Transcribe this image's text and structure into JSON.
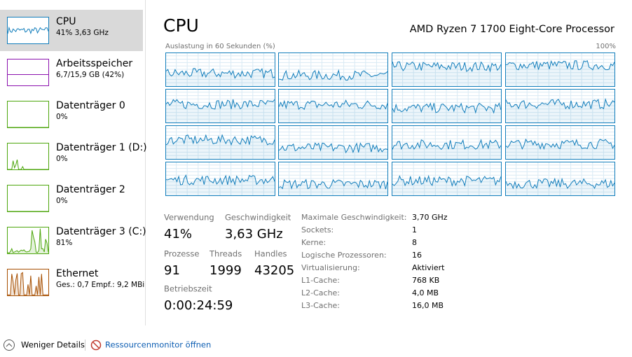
{
  "sidebar": {
    "items": [
      {
        "title": "CPU",
        "subtitle": "41% 3,63 GHz",
        "color": "#117dbb"
      },
      {
        "title": "Arbeitsspeicher",
        "subtitle": "6,7/15,9 GB (42%)",
        "color": "#8b12ae"
      },
      {
        "title": "Datenträger 0",
        "subtitle": "0%",
        "color": "#4da60c"
      },
      {
        "title": "Datenträger 1 (D:)",
        "subtitle": "0%",
        "color": "#4da60c"
      },
      {
        "title": "Datenträger 2",
        "subtitle": "0%",
        "color": "#4da60c"
      },
      {
        "title": "Datenträger 3 (C:)",
        "subtitle": "81%",
        "color": "#4da60c"
      },
      {
        "title": "Ethernet",
        "subtitle": "Ges.: 0,7 Empf.: 9,2 MBi",
        "color": "#a74f01"
      }
    ]
  },
  "header": {
    "title": "CPU",
    "processor": "AMD Ryzen 7 1700 Eight-Core Processor"
  },
  "graph": {
    "label": "Auslastung in 60 Sekunden (%)",
    "max_label": "100%"
  },
  "stats": [
    {
      "label": "Verwendung",
      "value": "41%"
    },
    {
      "label": "Geschwindigkeit",
      "value": "3,63 GHz"
    },
    {
      "label": "Prozesse",
      "value": "91"
    },
    {
      "label": "Threads",
      "value": "1999"
    },
    {
      "label": "Handles",
      "value": "43205"
    },
    {
      "label": "Betriebszeit",
      "value": "0:00:24:59"
    }
  ],
  "details": [
    {
      "label": "Maximale Geschwindigkeit:",
      "value": "3,70 GHz"
    },
    {
      "label": "Sockets:",
      "value": "1"
    },
    {
      "label": "Kerne:",
      "value": "8"
    },
    {
      "label": "Logische Prozessoren:",
      "value": "16"
    },
    {
      "label": "Virtualisierung:",
      "value": "Aktiviert"
    },
    {
      "label": "L1-Cache:",
      "value": "768 KB"
    },
    {
      "label": "L2-Cache:",
      "value": "4,0 MB"
    },
    {
      "label": "L3-Cache:",
      "value": "16,0 MB"
    }
  ],
  "footer": {
    "fewer_details": "Weniger Details",
    "resource_monitor": "Ressourcenmonitor öffnen"
  }
}
